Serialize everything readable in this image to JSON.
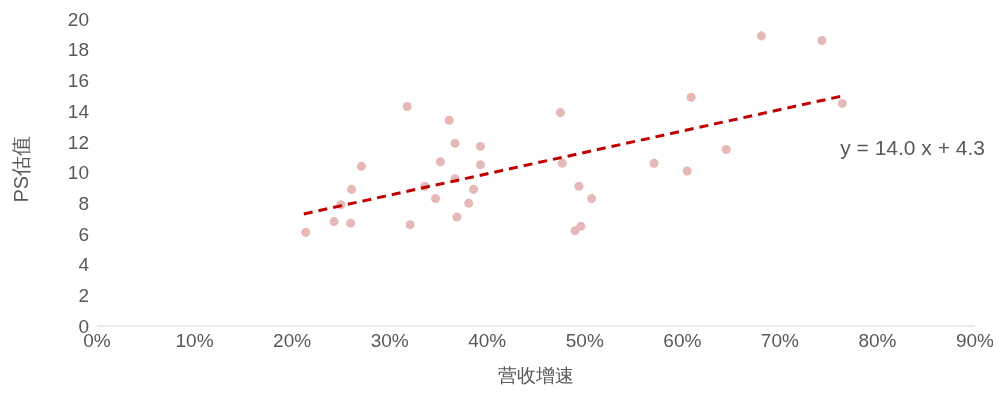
{
  "chart_data": {
    "type": "scatter",
    "xlabel": "营收增速",
    "ylabel": "PS估值",
    "annotations": [
      "y = 14.0 x + 4.3"
    ],
    "xlim": [
      0,
      90
    ],
    "xticks": [
      {
        "value": 0,
        "label": "0%"
      },
      {
        "value": 10,
        "label": "10%"
      },
      {
        "value": 20,
        "label": "20%"
      },
      {
        "value": 30,
        "label": "30%"
      },
      {
        "value": 40,
        "label": "40%"
      },
      {
        "value": 50,
        "label": "50%"
      },
      {
        "value": 60,
        "label": "60%"
      },
      {
        "value": 70,
        "label": "70%"
      },
      {
        "value": 80,
        "label": "80%"
      },
      {
        "value": 90,
        "label": "90%"
      }
    ],
    "ylim": [
      0,
      20
    ],
    "yticks": [
      0,
      2,
      4,
      6,
      8,
      10,
      12,
      14,
      16,
      18,
      20
    ],
    "grid": false,
    "series": [
      {
        "type": "scatter",
        "color": "#e6b8b7",
        "marker": "circle",
        "x": [
          21.4,
          24.3,
          25.0,
          26.0,
          26.1,
          27.1,
          31.8,
          32.1,
          33.6,
          34.7,
          35.2,
          36.1,
          36.7,
          36.7,
          36.9,
          38.1,
          38.6,
          39.3,
          39.3,
          47.5,
          47.7,
          49.4,
          50.7,
          49.6,
          49.0,
          57.1,
          60.5,
          60.9,
          64.5,
          68.1,
          74.3,
          76.4
        ],
        "values": [
          6.1,
          6.8,
          7.9,
          6.7,
          8.9,
          10.4,
          14.3,
          6.6,
          9.1,
          8.3,
          10.7,
          13.4,
          11.9,
          9.6,
          7.1,
          8.0,
          8.9,
          11.7,
          10.5,
          13.9,
          10.6,
          9.1,
          8.3,
          6.5,
          6.2,
          10.6,
          10.1,
          14.9,
          11.5,
          18.9,
          18.6,
          14.5
        ]
      },
      {
        "type": "line",
        "color": "#c00000",
        "line_style": "dashed",
        "marker": "none",
        "x": [
          21.2,
          76.5
        ],
        "values": [
          7.3,
          15.0
        ]
      }
    ]
  }
}
